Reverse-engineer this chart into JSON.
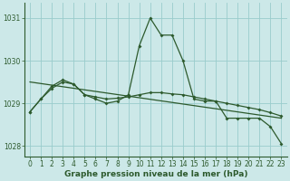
{
  "x": [
    0,
    1,
    2,
    3,
    4,
    5,
    6,
    7,
    8,
    9,
    10,
    11,
    12,
    13,
    14,
    15,
    16,
    17,
    18,
    19,
    20,
    21,
    22,
    23
  ],
  "line_main": [
    1028.8,
    1029.1,
    1029.4,
    1029.55,
    1029.45,
    1029.2,
    1029.1,
    1029.0,
    1029.05,
    1029.2,
    1030.35,
    1031.0,
    1030.6,
    1030.6,
    1030.0,
    1029.1,
    1029.05,
    1029.05,
    1028.65,
    1028.65,
    1028.65,
    1028.65,
    1028.45,
    1028.05
  ],
  "line_smooth": [
    1028.8,
    1029.1,
    1029.35,
    1029.5,
    1029.45,
    1029.2,
    1029.15,
    1029.1,
    1029.12,
    1029.15,
    1029.2,
    1029.25,
    1029.25,
    1029.22,
    1029.2,
    1029.15,
    1029.1,
    1029.05,
    1029.0,
    1028.95,
    1028.9,
    1028.85,
    1028.78,
    1028.7
  ],
  "trend_x": [
    0,
    23
  ],
  "trend_y": [
    1029.5,
    1028.65
  ],
  "bg_color": "#cce8e8",
  "grid_color": "#99cccc",
  "line_color": "#2d5a2d",
  "xlabel": "Graphe pression niveau de la mer (hPa)",
  "ylim": [
    1027.75,
    1031.35
  ],
  "xlim": [
    -0.5,
    23.5
  ],
  "yticks": [
    1028,
    1029,
    1030,
    1031
  ],
  "xticks": [
    0,
    1,
    2,
    3,
    4,
    5,
    6,
    7,
    8,
    9,
    10,
    11,
    12,
    13,
    14,
    15,
    16,
    17,
    18,
    19,
    20,
    21,
    22,
    23
  ],
  "xlabel_fontsize": 6.5,
  "tick_fontsize": 5.5
}
